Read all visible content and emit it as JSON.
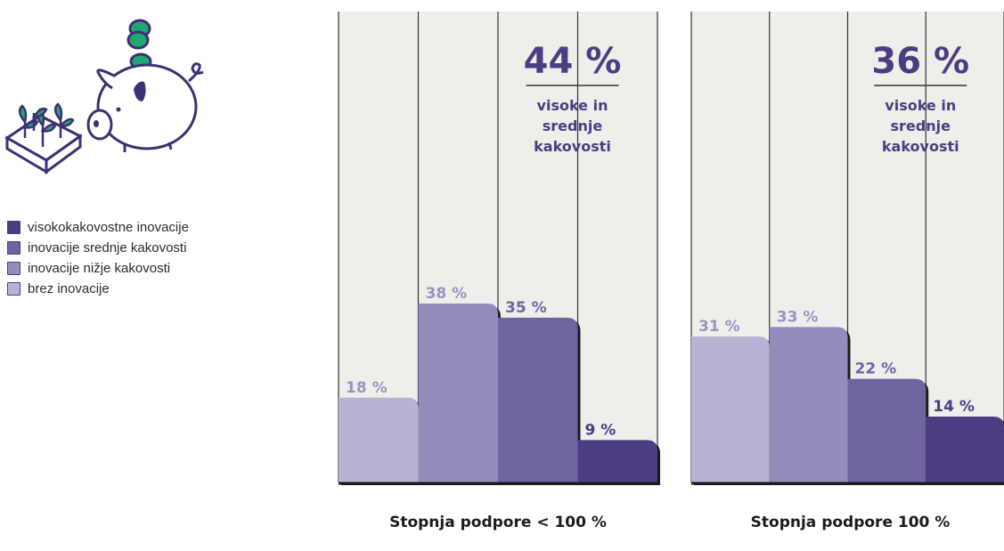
{
  "legend": {
    "items": [
      {
        "label": "visokokakovostne inovacije",
        "color": "#4c3c82"
      },
      {
        "label": "inovacije srednje kakovosti",
        "color": "#6f64a0"
      },
      {
        "label": "inovacije nižje kakovosti",
        "color": "#958cbb"
      },
      {
        "label": "brez inovacije",
        "color": "#b9b3d3"
      }
    ]
  },
  "illustration": {
    "icon": "piggy-bank-plants-icon"
  },
  "chart_data": [
    {
      "type": "bar",
      "title": "Stopnja podpore < 100 %",
      "categories": [
        "brez inovacije",
        "inovacije nižje kakovosti",
        "inovacije srednje kakovosti",
        "visokokakovostne inovacije"
      ],
      "values": [
        18,
        38,
        35,
        9
      ],
      "labels": [
        "18 %",
        "38 %",
        "35 %",
        "9 %"
      ],
      "ylim": [
        0,
        100
      ],
      "highlight": {
        "value": "44 %",
        "line1": "visoke in",
        "line2": "srednje",
        "line3": "kakovosti"
      }
    },
    {
      "type": "bar",
      "title": "Stopnja podpore 100 %",
      "categories": [
        "brez inovacije",
        "inovacije nižje kakovosti",
        "inovacije srednje kakovosti",
        "visokokakovostne inovacije"
      ],
      "values": [
        31,
        33,
        22,
        14
      ],
      "labels": [
        "31 %",
        "33 %",
        "22 %",
        "14 %"
      ],
      "ylim": [
        0,
        100
      ],
      "highlight": {
        "value": "36 %",
        "line1": "visoke in",
        "line2": "srednje",
        "line3": "kakovosti"
      }
    }
  ]
}
